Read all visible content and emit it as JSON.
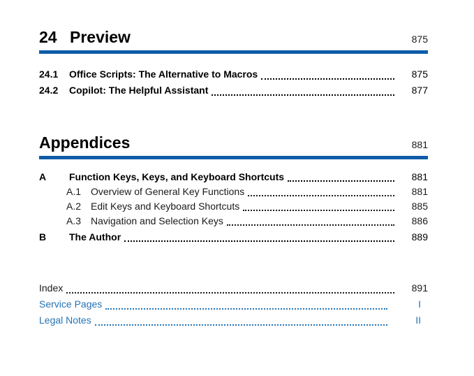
{
  "sections": [
    {
      "type": "chapter",
      "number": "24",
      "title": "Preview",
      "page": "875",
      "entries": [
        {
          "level": 0,
          "number": "24.1",
          "title": "Office Scripts: The Alternative to Macros",
          "page": "875",
          "bold": true
        },
        {
          "level": 0,
          "number": "24.2",
          "title": "Copilot: The Helpful Assistant",
          "page": "877",
          "bold": true
        }
      ]
    },
    {
      "type": "part",
      "number": "",
      "title": "Appendices",
      "page": "881",
      "entries": [
        {
          "level": 0,
          "number": "A",
          "title": "Function Keys, Keys, and Keyboard Shortcuts",
          "page": "881",
          "bold": true
        },
        {
          "level": 1,
          "number": "A.1",
          "title": "Overview of General Key Functions",
          "page": "881",
          "bold": false
        },
        {
          "level": 1,
          "number": "A.2",
          "title": "Edit Keys and Keyboard Shortcuts",
          "page": "885",
          "bold": false
        },
        {
          "level": 1,
          "number": "A.3",
          "title": "Navigation and Selection Keys",
          "page": "886",
          "bold": false
        },
        {
          "level": 0,
          "number": "B",
          "title": "The Author",
          "page": "889",
          "bold": true,
          "space_before": true
        }
      ]
    }
  ],
  "back_matter": [
    {
      "title": "Index",
      "page": "891",
      "link": false
    },
    {
      "title": "Service Pages",
      "page": "I",
      "link": true
    },
    {
      "title": "Legal Notes",
      "page": "II",
      "link": true
    }
  ],
  "colors": {
    "rule_blue": "#0d5ca8",
    "link_blue": "#2473b5",
    "text": "#1a1a1a",
    "heading_text": "#000000"
  }
}
